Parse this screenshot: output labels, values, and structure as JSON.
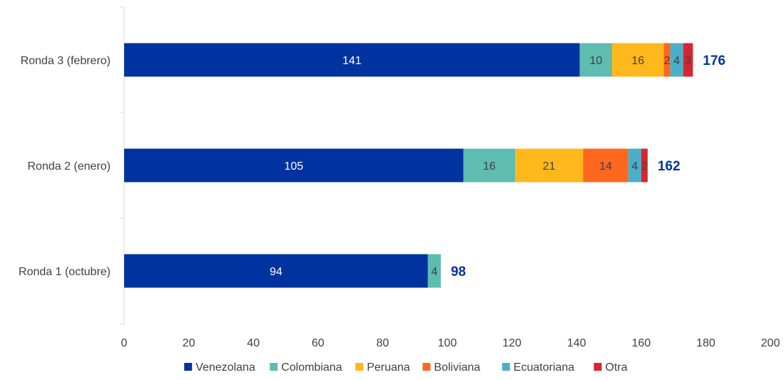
{
  "chart_data": {
    "type": "bar",
    "orientation": "horizontal",
    "stacked": true,
    "categories": [
      "Ronda 3 (febrero)",
      "Ronda 2 (enero)",
      "Ronda 1 (octubre)"
    ],
    "series": [
      {
        "name": "Venezolana",
        "color": "#0033a0",
        "label_color": "#ffffff",
        "values": [
          141,
          105,
          94
        ]
      },
      {
        "name": "Colombiana",
        "color": "#5ebcb1",
        "label_color": "#404040",
        "values": [
          10,
          16,
          4
        ]
      },
      {
        "name": "Peruana",
        "color": "#ffb81c",
        "label_color": "#404040",
        "values": [
          16,
          21,
          0
        ]
      },
      {
        "name": "Boliviana",
        "color": "#ff671f",
        "label_color": "#404040",
        "values": [
          2,
          14,
          0
        ]
      },
      {
        "name": "Ecuatoriana",
        "color": "#4aafc9",
        "label_color": "#404040",
        "values": [
          4,
          4,
          0
        ]
      },
      {
        "name": "Otra",
        "color": "#d62631",
        "label_color": "#404040",
        "values": [
          3,
          2,
          0
        ]
      }
    ],
    "totals": [
      176,
      162,
      98
    ],
    "xlim": [
      0,
      200
    ],
    "xticks": [
      0,
      20,
      40,
      60,
      80,
      100,
      120,
      140,
      160,
      180,
      200
    ],
    "grid": false,
    "legend": "bottom"
  }
}
